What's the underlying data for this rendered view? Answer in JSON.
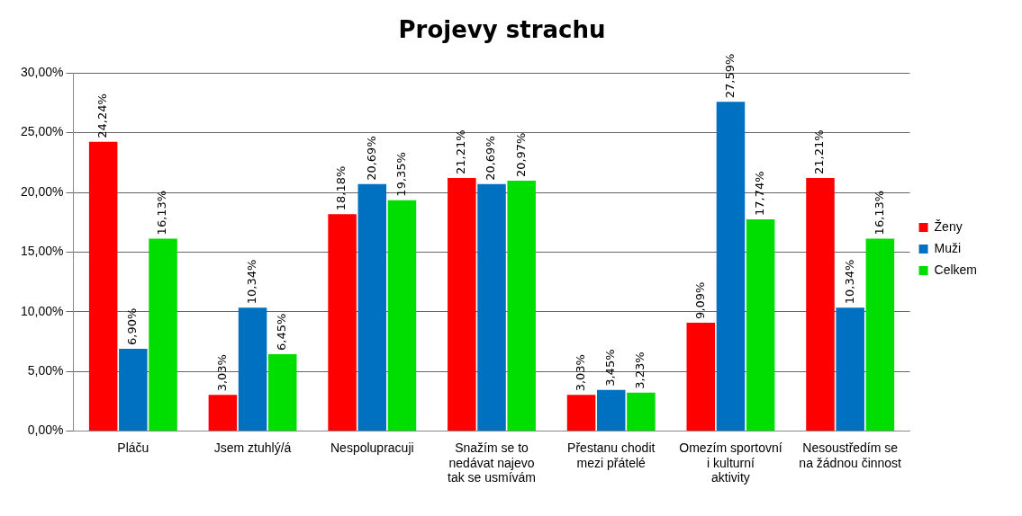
{
  "chart_data": {
    "type": "bar",
    "title": "Projevy strachu",
    "categories": [
      "Pláču",
      "Jsem ztuhlý/á",
      "Nespolupracuji",
      "Snažím se to nedávat najevo tak se usmívám",
      "Přestanu chodit mezi přátelé",
      "Omezím sportovní i kulturní aktivity",
      "Nesoustředím se na žádnou činnost"
    ],
    "series": [
      {
        "name": "Ženy",
        "color": "#ff0000",
        "values": [
          24.24,
          3.03,
          18.18,
          21.21,
          3.03,
          9.09,
          21.21
        ],
        "value_labels": [
          "24,24%",
          "3,03%",
          "18,18%",
          "21,21%",
          "3,03%",
          "9,09%",
          "21,21%"
        ]
      },
      {
        "name": "Muži",
        "color": "#0070c0",
        "values": [
          6.9,
          10.34,
          20.69,
          20.69,
          3.45,
          27.59,
          10.34
        ],
        "value_labels": [
          "6,90%",
          "10,34%",
          "20,69%",
          "20,69%",
          "3,45%",
          "27,59%",
          "10,34%"
        ]
      },
      {
        "name": "Celkem",
        "color": "#00dd00",
        "values": [
          16.13,
          6.45,
          19.35,
          20.97,
          3.23,
          17.74,
          16.13
        ],
        "value_labels": [
          "16,13%",
          "6,45%",
          "19,35%",
          "20,97%",
          "3,23%",
          "17,74%",
          "16,13%"
        ]
      }
    ],
    "ylim": [
      0,
      30
    ],
    "yticks": [
      {
        "value": 0,
        "label": "0,00%"
      },
      {
        "value": 5,
        "label": "5,00%"
      },
      {
        "value": 10,
        "label": "10,00%"
      },
      {
        "value": 15,
        "label": "15,00%"
      },
      {
        "value": 20,
        "label": "20,00%"
      },
      {
        "value": 25,
        "label": "25,00%"
      },
      {
        "value": 30,
        "label": "30,00%"
      }
    ],
    "grid": "y",
    "legend": "right"
  }
}
